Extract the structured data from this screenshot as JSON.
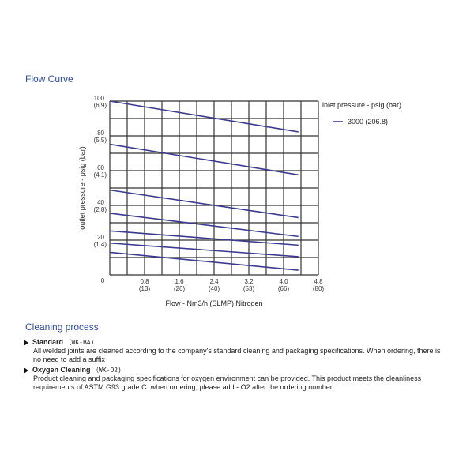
{
  "flow_section": {
    "title": "Flow Curve"
  },
  "chart_data": {
    "type": "line",
    "xlabel": "Flow - Nm3/h (SLMP) Nitrogen",
    "ylabel": "outlet pressure - psig (bar)",
    "xlim": [
      0,
      4.8
    ],
    "ylim": [
      0,
      100
    ],
    "grid": true,
    "legend_position": "right",
    "legend_title": "inlet pressure - psig (bar)",
    "x_origin_label": "0",
    "x_ticks": [
      {
        "value": 0.8,
        "label": "0.8",
        "sub": "(13)"
      },
      {
        "value": 1.6,
        "label": "1.6",
        "sub": "(26)"
      },
      {
        "value": 2.4,
        "label": "2.4",
        "sub": "(40)"
      },
      {
        "value": 3.2,
        "label": "3.2",
        "sub": "(53)"
      },
      {
        "value": 4.0,
        "label": "4.0",
        "sub": "(66)"
      },
      {
        "value": 4.8,
        "label": "4.8",
        "sub": "(80)"
      }
    ],
    "y_ticks": [
      {
        "value": 100,
        "label": "100",
        "sub": "(6.9)"
      },
      {
        "value": 80,
        "label": "80",
        "sub": "(5.5)"
      },
      {
        "value": 60,
        "label": "60",
        "sub": "(4.1)"
      },
      {
        "value": 40,
        "label": "40",
        "sub": "(2.8)"
      },
      {
        "value": 20,
        "label": "20",
        "sub": "(1.4)"
      }
    ],
    "line_color": "#3b3b8f",
    "series": [
      {
        "name": "3000 (206.8)",
        "x": [
          0,
          4.34
        ],
        "y": [
          100,
          82.3
        ]
      },
      {
        "x": [
          0,
          4.34
        ],
        "y": [
          75.2,
          57.6
        ]
      },
      {
        "x": [
          0,
          4.34
        ],
        "y": [
          48.8,
          33.0
        ]
      },
      {
        "x": [
          0,
          4.34
        ],
        "y": [
          35.5,
          22.1
        ]
      },
      {
        "x": [
          0,
          4.34
        ],
        "y": [
          25.3,
          17.1
        ]
      },
      {
        "x": [
          0,
          4.34
        ],
        "y": [
          18.3,
          10.5
        ]
      },
      {
        "x": [
          0,
          4.34
        ],
        "y": [
          13.0,
          2.7
        ]
      }
    ]
  },
  "cleaning": {
    "title": "Cleaning process",
    "items": [
      {
        "name": "Standard",
        "code": "（WK-BA)",
        "text": "All welded joints are cleaned according to the company's standard cleaning and packaging specifications. When ordering, there is no need to add a suffix"
      },
      {
        "name": "Oxygen Cleaning",
        "code": "（WK-O2)",
        "text": "Product cleaning and packaging specifications for oxygen environment can be provided. This product meets the cleanliness requirements of ASTM G93 grade C. when ordering, please add - O2 after the ordering number"
      }
    ]
  }
}
